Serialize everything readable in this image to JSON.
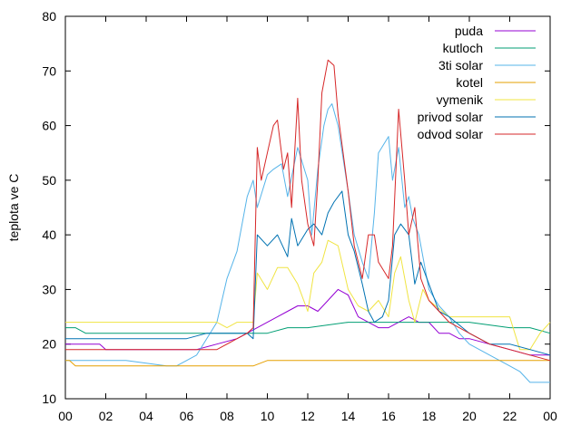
{
  "chart_data": {
    "type": "line",
    "ylabel": "teplota ve C",
    "xlabel": "",
    "xlim": [
      0,
      24
    ],
    "ylim": [
      10,
      80
    ],
    "x_tick_labels": [
      "00",
      "02",
      "04",
      "06",
      "08",
      "10",
      "12",
      "14",
      "16",
      "18",
      "20",
      "22",
      "00"
    ],
    "y_tick_labels": [
      "10",
      "20",
      "30",
      "40",
      "50",
      "60",
      "70",
      "80"
    ],
    "grid": false,
    "legend_position": "top-right",
    "series": [
      {
        "name": "puda",
        "color": "#9400d3",
        "x": [
          0,
          1.7,
          2.0,
          5.5,
          6.5,
          7.5,
          8.5,
          9.5,
          10.5,
          11,
          11.5,
          12,
          12.5,
          13,
          13.5,
          14,
          14.5,
          15,
          15.5,
          16,
          16.5,
          17,
          17.5,
          18,
          18.5,
          19,
          19.5,
          20,
          21,
          22,
          23,
          24
        ],
        "y": [
          20,
          20,
          19,
          19,
          19,
          20,
          21,
          23,
          25,
          26,
          27,
          27,
          26,
          28,
          30,
          29,
          25,
          24,
          23,
          23,
          24,
          25,
          24,
          24,
          22,
          22,
          21,
          21,
          20,
          19,
          18,
          18
        ]
      },
      {
        "name": "kutloch",
        "color": "#009e73",
        "x": [
          0,
          0.5,
          1,
          3,
          5,
          7,
          9,
          10,
          11,
          12,
          14,
          16,
          18,
          20,
          22,
          23,
          24
        ],
        "y": [
          23,
          23,
          22,
          22,
          22,
          22,
          22,
          22,
          23,
          23,
          24,
          24,
          24,
          24,
          23,
          23,
          22
        ]
      },
      {
        "name": "3ti solar",
        "color": "#56b4e9",
        "x": [
          0,
          3,
          5,
          5.5,
          6.5,
          7.5,
          8,
          8.5,
          9,
          9.3,
          9.5,
          10,
          10.3,
          10.7,
          11,
          11.5,
          12,
          12.2,
          12.5,
          12.8,
          13,
          13.2,
          13.5,
          14,
          14.3,
          14.7,
          15,
          15.3,
          15.5,
          16,
          16.2,
          16.5,
          16.8,
          17,
          17.2,
          17.5,
          18,
          18.5,
          19,
          19.5,
          20,
          21,
          22,
          22.5,
          23,
          24
        ],
        "y": [
          17,
          17,
          16,
          16,
          18,
          24,
          32,
          37,
          47,
          50,
          45,
          51,
          52,
          53,
          47,
          56,
          50,
          40,
          52,
          60,
          63,
          64,
          60,
          48,
          40,
          35,
          32,
          44,
          55,
          58,
          50,
          56,
          45,
          47,
          43,
          40,
          30,
          27,
          25,
          22,
          20,
          18,
          16,
          15,
          13,
          13
        ]
      },
      {
        "name": "kotel",
        "color": "#e69f00",
        "x": [
          0,
          0.2,
          0.5,
          5,
          8,
          9.3,
          10,
          11,
          12,
          13,
          14,
          15,
          16,
          18,
          20,
          22,
          23,
          24
        ],
        "y": [
          17,
          17,
          16,
          16,
          16,
          16,
          17,
          17,
          17,
          17,
          17,
          17,
          17,
          17,
          17,
          17,
          17,
          17
        ]
      },
      {
        "name": "vymenik",
        "color": "#f0e442",
        "x": [
          0,
          3,
          5,
          7.5,
          8,
          8.5,
          9,
          9.3,
          9.5,
          10,
          10.5,
          11,
          11.5,
          12,
          12.3,
          12.7,
          13,
          13.5,
          14,
          14.5,
          15,
          15.5,
          16,
          16.3,
          16.6,
          17,
          17.3,
          17.7,
          18,
          19,
          20,
          21,
          22,
          22.5,
          23,
          23.5,
          24
        ],
        "y": [
          24,
          24,
          24,
          24,
          23,
          24,
          24,
          24,
          33,
          30,
          34,
          34,
          31,
          26,
          33,
          35,
          39,
          38,
          30,
          27,
          26,
          28,
          25,
          33,
          36,
          28,
          24,
          30,
          28,
          25,
          25,
          25,
          25,
          19,
          19,
          22,
          24
        ]
      },
      {
        "name": "privod solar",
        "color": "#0072b2",
        "x": [
          0,
          6,
          7,
          8,
          8.5,
          9,
          9.3,
          9.5,
          10,
          10.5,
          11,
          11.2,
          11.5,
          12,
          12.3,
          12.7,
          13,
          13.3,
          13.7,
          14,
          14.3,
          14.7,
          15,
          15.3,
          15.7,
          16,
          16.3,
          16.6,
          17,
          17.3,
          17.6,
          18,
          18.5,
          19,
          20,
          21,
          22,
          23,
          24
        ],
        "y": [
          21,
          21,
          22,
          22,
          22,
          22,
          21,
          40,
          38,
          40,
          36,
          43,
          38,
          41,
          42,
          40,
          44,
          46,
          48,
          40,
          37,
          31,
          26,
          24,
          25,
          28,
          40,
          42,
          40,
          31,
          35,
          31,
          26,
          25,
          22,
          20,
          20,
          19,
          18
        ]
      },
      {
        "name": "odvod solar",
        "color": "#d62728",
        "x": [
          0,
          1,
          2,
          5,
          7.5,
          8.5,
          9,
          9.3,
          9.5,
          9.7,
          10,
          10.3,
          10.5,
          10.8,
          11,
          11.2,
          11.5,
          11.7,
          12,
          12.3,
          12.5,
          12.7,
          13,
          13.3,
          13.5,
          14,
          14.3,
          14.7,
          15,
          15.3,
          15.5,
          16,
          16.2,
          16.5,
          16.8,
          17,
          17.3,
          17.6,
          18,
          18.5,
          19,
          20,
          21,
          22,
          23,
          24
        ],
        "y": [
          19,
          19,
          19,
          19,
          19,
          21,
          22,
          23,
          56,
          50,
          55,
          60,
          61,
          52,
          55,
          45,
          65,
          50,
          42,
          38,
          50,
          66,
          72,
          71,
          62,
          48,
          38,
          32,
          40,
          40,
          35,
          32,
          38,
          63,
          50,
          40,
          45,
          32,
          28,
          26,
          24,
          22,
          20,
          19,
          18,
          17
        ]
      }
    ]
  }
}
